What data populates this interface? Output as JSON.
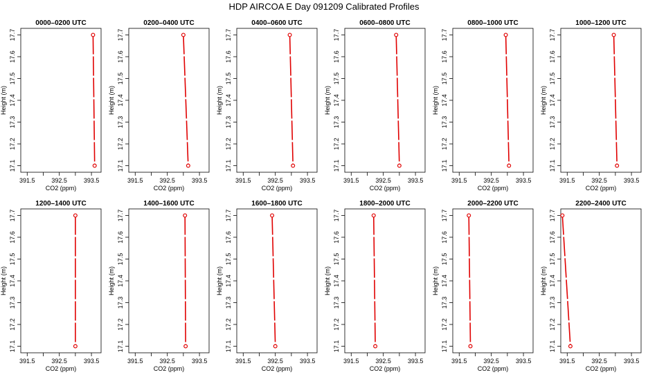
{
  "title": "HDP AIRCOA E  Day 091209  Calibrated Profiles",
  "colors": {
    "series": "#e00000",
    "axis": "#000000",
    "background": "#ffffff"
  },
  "chart_data": [
    {
      "type": "line",
      "title": "0000–0200 UTC",
      "xlabel": "CO2 (ppm)",
      "ylabel": "Height (m)",
      "xlim": [
        391.3,
        393.8
      ],
      "ylim": [
        17.07,
        17.73
      ],
      "xticks": [
        "391.5",
        "392.5",
        "393.5"
      ],
      "xticks_minor": [
        "392.0",
        "393.0"
      ],
      "yticks": [
        "17.1",
        "17.2",
        "17.3",
        "17.4",
        "17.5",
        "17.6",
        "17.7"
      ],
      "grid": false,
      "series": [
        {
          "values": [
            {
              "x": 393.55,
              "y": 17.7
            },
            {
              "x": 393.6,
              "y": 17.1
            }
          ]
        }
      ]
    },
    {
      "type": "line",
      "title": "0200–0400 UTC",
      "xlabel": "CO2 (ppm)",
      "ylabel": "Height (m)",
      "xlim": [
        391.3,
        393.8
      ],
      "ylim": [
        17.07,
        17.73
      ],
      "xticks": [
        "391.5",
        "392.5",
        "393.5"
      ],
      "xticks_minor": [
        "392.0",
        "393.0"
      ],
      "yticks": [
        "17.1",
        "17.2",
        "17.3",
        "17.4",
        "17.5",
        "17.6",
        "17.7"
      ],
      "grid": false,
      "series": [
        {
          "values": [
            {
              "x": 393.0,
              "y": 17.7
            },
            {
              "x": 393.15,
              "y": 17.1
            }
          ]
        }
      ]
    },
    {
      "type": "line",
      "title": "0400–0600 UTC",
      "xlabel": "CO2 (ppm)",
      "ylabel": "Height (m)",
      "xlim": [
        391.3,
        393.8
      ],
      "ylim": [
        17.07,
        17.73
      ],
      "xticks": [
        "391.5",
        "392.5",
        "393.5"
      ],
      "xticks_minor": [
        "392.0",
        "393.0"
      ],
      "yticks": [
        "17.1",
        "17.2",
        "17.3",
        "17.4",
        "17.5",
        "17.6",
        "17.7"
      ],
      "grid": false,
      "series": [
        {
          "values": [
            {
              "x": 392.95,
              "y": 17.7
            },
            {
              "x": 393.05,
              "y": 17.1
            }
          ]
        }
      ]
    },
    {
      "type": "line",
      "title": "0600–0800 UTC",
      "xlabel": "CO2 (ppm)",
      "ylabel": "Height (m)",
      "xlim": [
        391.3,
        393.8
      ],
      "ylim": [
        17.07,
        17.73
      ],
      "xticks": [
        "391.5",
        "392.5",
        "393.5"
      ],
      "xticks_minor": [
        "392.0",
        "393.0"
      ],
      "yticks": [
        "17.1",
        "17.2",
        "17.3",
        "17.4",
        "17.5",
        "17.6",
        "17.7"
      ],
      "grid": false,
      "series": [
        {
          "values": [
            {
              "x": 392.9,
              "y": 17.7
            },
            {
              "x": 393.0,
              "y": 17.1
            }
          ]
        }
      ]
    },
    {
      "type": "line",
      "title": "0800–1000 UTC",
      "xlabel": "CO2 (ppm)",
      "ylabel": "Height (m)",
      "xlim": [
        391.3,
        393.8
      ],
      "ylim": [
        17.07,
        17.73
      ],
      "xticks": [
        "391.5",
        "392.5",
        "393.5"
      ],
      "xticks_minor": [
        "392.0",
        "393.0"
      ],
      "yticks": [
        "17.1",
        "17.2",
        "17.3",
        "17.4",
        "17.5",
        "17.6",
        "17.7"
      ],
      "grid": false,
      "series": [
        {
          "values": [
            {
              "x": 392.95,
              "y": 17.7
            },
            {
              "x": 393.05,
              "y": 17.1
            }
          ]
        }
      ]
    },
    {
      "type": "line",
      "title": "1000–1200 UTC",
      "xlabel": "CO2 (ppm)",
      "ylabel": "Height (m)",
      "xlim": [
        391.3,
        393.8
      ],
      "ylim": [
        17.07,
        17.73
      ],
      "xticks": [
        "391.5",
        "392.5",
        "393.5"
      ],
      "xticks_minor": [
        "392.0",
        "393.0"
      ],
      "yticks": [
        "17.1",
        "17.2",
        "17.3",
        "17.4",
        "17.5",
        "17.6",
        "17.7"
      ],
      "grid": false,
      "series": [
        {
          "values": [
            {
              "x": 392.95,
              "y": 17.7
            },
            {
              "x": 393.05,
              "y": 17.1
            }
          ]
        }
      ]
    },
    {
      "type": "line",
      "title": "1200–1400 UTC",
      "xlabel": "CO2 (ppm)",
      "ylabel": "Height (m)",
      "xlim": [
        391.3,
        393.8
      ],
      "ylim": [
        17.07,
        17.73
      ],
      "xticks": [
        "391.5",
        "392.5",
        "393.5"
      ],
      "xticks_minor": [
        "392.0",
        "393.0"
      ],
      "yticks": [
        "17.1",
        "17.2",
        "17.3",
        "17.4",
        "17.5",
        "17.6",
        "17.7"
      ],
      "grid": false,
      "series": [
        {
          "values": [
            {
              "x": 393.0,
              "y": 17.7
            },
            {
              "x": 393.0,
              "y": 17.1
            }
          ]
        }
      ]
    },
    {
      "type": "line",
      "title": "1400–1600 UTC",
      "xlabel": "CO2 (ppm)",
      "ylabel": "Height (m)",
      "xlim": [
        391.3,
        393.8
      ],
      "ylim": [
        17.07,
        17.73
      ],
      "xticks": [
        "391.5",
        "392.5",
        "393.5"
      ],
      "xticks_minor": [
        "392.0",
        "393.0"
      ],
      "yticks": [
        "17.1",
        "17.2",
        "17.3",
        "17.4",
        "17.5",
        "17.6",
        "17.7"
      ],
      "grid": false,
      "series": [
        {
          "values": [
            {
              "x": 393.05,
              "y": 17.7
            },
            {
              "x": 393.07,
              "y": 17.1
            }
          ]
        }
      ]
    },
    {
      "type": "line",
      "title": "1600–1800 UTC",
      "xlabel": "CO2 (ppm)",
      "ylabel": "Height (m)",
      "xlim": [
        391.3,
        393.8
      ],
      "ylim": [
        17.07,
        17.73
      ],
      "xticks": [
        "391.5",
        "392.5",
        "393.5"
      ],
      "xticks_minor": [
        "392.0",
        "393.0"
      ],
      "yticks": [
        "17.1",
        "17.2",
        "17.3",
        "17.4",
        "17.5",
        "17.6",
        "17.7"
      ],
      "grid": false,
      "series": [
        {
          "values": [
            {
              "x": 392.4,
              "y": 17.7
            },
            {
              "x": 392.5,
              "y": 17.1
            }
          ]
        }
      ]
    },
    {
      "type": "line",
      "title": "1800–2000 UTC",
      "xlabel": "CO2 (ppm)",
      "ylabel": "Height (m)",
      "xlim": [
        391.3,
        393.8
      ],
      "ylim": [
        17.07,
        17.73
      ],
      "xticks": [
        "391.5",
        "392.5",
        "393.5"
      ],
      "xticks_minor": [
        "392.0",
        "393.0"
      ],
      "yticks": [
        "17.1",
        "17.2",
        "17.3",
        "17.4",
        "17.5",
        "17.6",
        "17.7"
      ],
      "grid": false,
      "series": [
        {
          "values": [
            {
              "x": 392.2,
              "y": 17.7
            },
            {
              "x": 392.25,
              "y": 17.1
            }
          ]
        }
      ]
    },
    {
      "type": "line",
      "title": "2000–2200 UTC",
      "xlabel": "CO2 (ppm)",
      "ylabel": "Height (m)",
      "xlim": [
        391.3,
        393.8
      ],
      "ylim": [
        17.07,
        17.73
      ],
      "xticks": [
        "391.5",
        "392.5",
        "393.5"
      ],
      "xticks_minor": [
        "392.0",
        "393.0"
      ],
      "yticks": [
        "17.1",
        "17.2",
        "17.3",
        "17.4",
        "17.5",
        "17.6",
        "17.7"
      ],
      "grid": false,
      "series": [
        {
          "values": [
            {
              "x": 391.8,
              "y": 17.7
            },
            {
              "x": 391.85,
              "y": 17.1
            }
          ]
        }
      ]
    },
    {
      "type": "line",
      "title": "2200–2400 UTC",
      "xlabel": "CO2 (ppm)",
      "ylabel": "Height (m)",
      "xlim": [
        391.3,
        393.8
      ],
      "ylim": [
        17.07,
        17.73
      ],
      "xticks": [
        "391.5",
        "392.5",
        "393.5"
      ],
      "xticks_minor": [
        "392.0",
        "393.0"
      ],
      "yticks": [
        "17.1",
        "17.2",
        "17.3",
        "17.4",
        "17.5",
        "17.6",
        "17.7"
      ],
      "grid": false,
      "series": [
        {
          "values": [
            {
              "x": 391.35,
              "y": 17.7
            },
            {
              "x": 391.6,
              "y": 17.1
            }
          ]
        }
      ]
    }
  ]
}
